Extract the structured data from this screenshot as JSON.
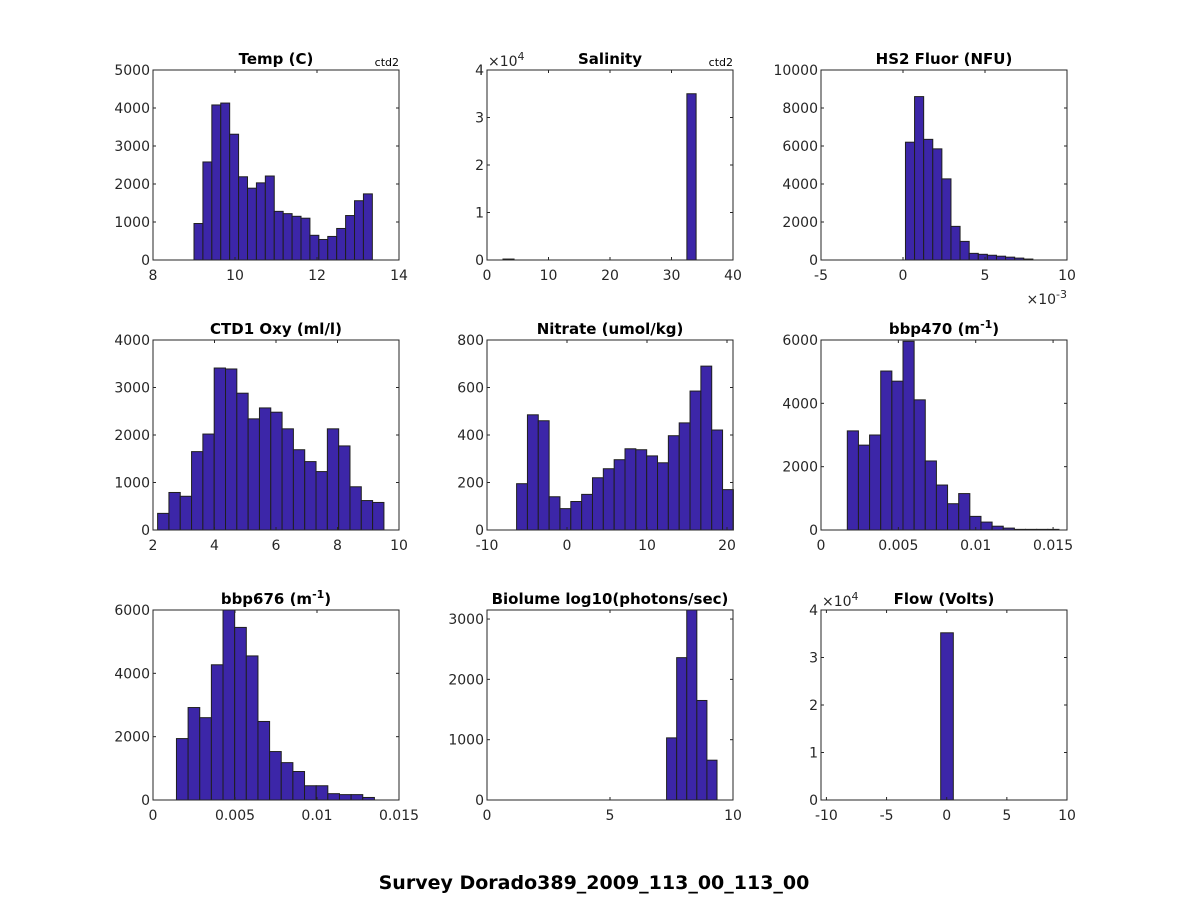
{
  "figure_title": "Survey Dorado389_2009_113_00_113_00",
  "colors": {
    "bar_fill": "#3c26a8",
    "bar_edge": "#1f1f1f",
    "axis": "#262626"
  },
  "chart_data": [
    {
      "type": "bar",
      "title": "Temp (C)",
      "title_sup": "",
      "title_end": "",
      "corner_note": "ctd2",
      "xlim": [
        8,
        14
      ],
      "ylim": [
        0,
        5000
      ],
      "xticks": [
        8,
        10,
        12,
        14
      ],
      "xtick_labels": [
        "8",
        "10",
        "12",
        "14"
      ],
      "yticks": [
        0,
        1000,
        2000,
        3000,
        4000,
        5000
      ],
      "ytick_labels": [
        "0",
        "1000",
        "2000",
        "3000",
        "4000",
        "5000"
      ],
      "bin_start": 9.0,
      "bin_width": 0.2175,
      "counts": [
        960,
        2580,
        4080,
        4130,
        3310,
        2190,
        1890,
        2030,
        2210,
        1280,
        1220,
        1150,
        1100,
        650,
        540,
        620,
        830,
        1170,
        1560,
        1740
      ]
    },
    {
      "type": "bar",
      "title": "Salinity",
      "title_sup": "",
      "title_end": "",
      "corner_note": "ctd2",
      "y_multiplier": "×10",
      "y_exponent": "4",
      "xlim": [
        0,
        40
      ],
      "ylim": [
        0,
        40000
      ],
      "xticks": [
        0,
        10,
        20,
        30,
        40
      ],
      "xtick_labels": [
        "0",
        "10",
        "20",
        "30",
        "40"
      ],
      "yticks": [
        0,
        10000,
        20000,
        30000,
        40000
      ],
      "ytick_labels": [
        "0",
        "1",
        "2",
        "3",
        "4"
      ],
      "bins": [
        {
          "start": 2.6,
          "end": 4.4,
          "count": 200
        },
        {
          "start": 32.5,
          "end": 34.0,
          "count": 35000
        }
      ]
    },
    {
      "type": "bar",
      "title": "HS2 Fluor (NFU)",
      "title_sup": "",
      "title_end": "",
      "x_multiplier": "×10",
      "x_exponent": "-3",
      "xlim": [
        -5,
        10
      ],
      "ylim": [
        0,
        10000
      ],
      "xticks": [
        -5,
        0,
        5,
        10
      ],
      "xtick_labels": [
        "-5",
        "0",
        "5",
        "10"
      ],
      "yticks": [
        0,
        2000,
        4000,
        6000,
        8000,
        10000
      ],
      "ytick_labels": [
        "0",
        "2000",
        "4000",
        "6000",
        "8000",
        "10000"
      ],
      "bin_start": 0.15,
      "bin_width": 0.555,
      "counts": [
        6200,
        8600,
        6350,
        5850,
        4270,
        1770,
        980,
        350,
        300,
        250,
        200,
        150,
        100,
        50
      ]
    },
    {
      "type": "bar",
      "title": "CTD1 Oxy (ml/l)",
      "title_sup": "",
      "title_end": "",
      "xlim": [
        2,
        10
      ],
      "ylim": [
        0,
        4000
      ],
      "xticks": [
        2,
        4,
        6,
        8,
        10
      ],
      "xtick_labels": [
        "2",
        "4",
        "6",
        "8",
        "10"
      ],
      "yticks": [
        0,
        1000,
        2000,
        3000,
        4000
      ],
      "ytick_labels": [
        "0",
        "1000",
        "2000",
        "3000",
        "4000"
      ],
      "bin_start": 2.15,
      "bin_width": 0.368,
      "counts": [
        350,
        790,
        710,
        1650,
        2020,
        3410,
        3390,
        2880,
        2340,
        2570,
        2480,
        2130,
        1690,
        1440,
        1230,
        2130,
        1770,
        910,
        620,
        580
      ]
    },
    {
      "type": "bar",
      "title": "Nitrate (umol/kg)",
      "title_sup": "",
      "title_end": "",
      "xlim": [
        -10,
        20.75
      ],
      "ylim": [
        0,
        800
      ],
      "xticks": [
        -10,
        0,
        10,
        20
      ],
      "xtick_labels": [
        "-10",
        "0",
        "10",
        "20"
      ],
      "yticks": [
        0,
        200,
        400,
        600,
        800
      ],
      "ytick_labels": [
        "0",
        "200",
        "400",
        "600",
        "800"
      ],
      "bin_start": -6.3,
      "bin_width": 1.355,
      "counts": [
        195,
        485,
        460,
        140,
        90,
        120,
        150,
        220,
        258,
        296,
        342,
        338,
        312,
        283,
        397,
        451,
        585,
        690,
        421,
        170
      ]
    },
    {
      "type": "bar",
      "title": "bbp470 (m",
      "title_sup": "-1",
      "title_end": ")",
      "xlim": [
        0,
        0.0159
      ],
      "ylim": [
        0,
        6000
      ],
      "xticks": [
        0,
        0.005,
        0.01,
        0.015
      ],
      "xtick_labels": [
        "0",
        "0.005",
        "0.01",
        "0.015"
      ],
      "yticks": [
        0,
        2000,
        4000,
        6000
      ],
      "ytick_labels": [
        "0",
        "2000",
        "4000",
        "6000"
      ],
      "bin_start": 0.0017,
      "bin_width": 0.00072,
      "counts": [
        3130,
        2680,
        3000,
        5020,
        4700,
        5960,
        4110,
        2180,
        1420,
        830,
        1150,
        430,
        250,
        120,
        60,
        20,
        20,
        20,
        20
      ]
    },
    {
      "type": "bar",
      "title": "bbp676 (m",
      "title_sup": "-1",
      "title_end": ")",
      "xlim": [
        0,
        0.015
      ],
      "ylim": [
        0,
        6000
      ],
      "xticks": [
        0,
        0.005,
        0.01,
        0.015
      ],
      "xtick_labels": [
        "0",
        "0.005",
        "0.01",
        "0.015"
      ],
      "yticks": [
        0,
        2000,
        4000,
        6000
      ],
      "ytick_labels": [
        "0",
        "2000",
        "4000",
        "6000"
      ],
      "bin_start": 0.00143,
      "bin_width": 0.00071,
      "counts": [
        1940,
        2920,
        2600,
        4270,
        6000,
        5450,
        4550,
        2480,
        1530,
        1180,
        900,
        450,
        450,
        200,
        170,
        170,
        80
      ]
    },
    {
      "type": "bar",
      "title": "Biolume log10(photons/sec)",
      "title_sup": "",
      "title_end": "",
      "xlim": [
        0,
        10
      ],
      "ylim": [
        0,
        3150
      ],
      "xticks": [
        0,
        5,
        10
      ],
      "xtick_labels": [
        "0",
        "5",
        "10"
      ],
      "yticks": [
        0,
        1000,
        2000,
        3000
      ],
      "ytick_labels": [
        "0",
        "1000",
        "2000",
        "3000"
      ],
      "bin_start": 7.3,
      "bin_width": 0.41,
      "counts": [
        1030,
        2360,
        3150,
        1650,
        660
      ]
    },
    {
      "type": "bar",
      "title": "Flow (Volts)",
      "title_sup": "",
      "title_end": "",
      "y_multiplier": "×10",
      "y_exponent": "4",
      "xlim": [
        -10.45,
        10
      ],
      "ylim": [
        0,
        40000
      ],
      "xticks": [
        -10,
        -5,
        0,
        5,
        10
      ],
      "xtick_labels": [
        "-10",
        "-5",
        "0",
        "5",
        "10"
      ],
      "yticks": [
        0,
        10000,
        20000,
        30000,
        40000
      ],
      "ytick_labels": [
        "0",
        "1",
        "2",
        "3",
        "4"
      ],
      "bins": [
        {
          "start": -0.5,
          "end": 0.55,
          "count": 35200
        }
      ]
    }
  ]
}
